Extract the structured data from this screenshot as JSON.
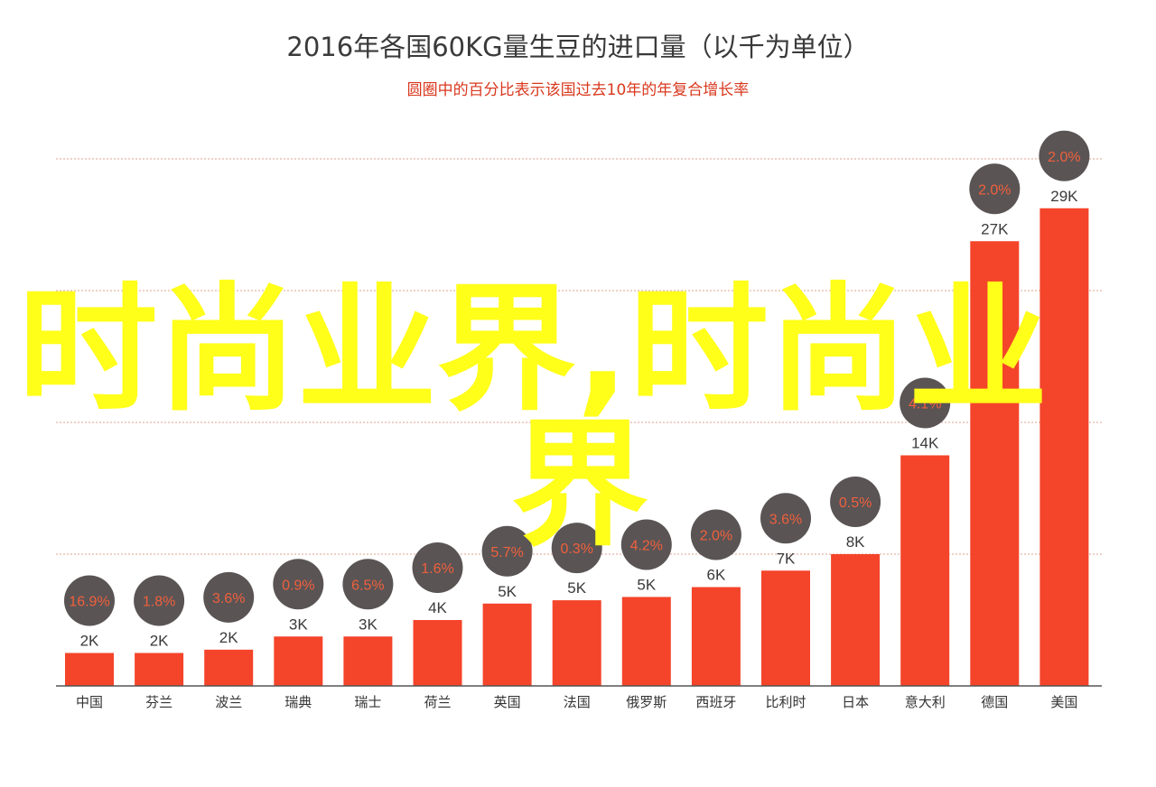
{
  "chart_data": {
    "type": "bar",
    "title": "2016年各国60KG量生豆的进口量（以千为单位）",
    "subtitle": "圆圈中的百分比表示该国过去10年的年复合增长率",
    "categories": [
      "中国",
      "芬兰",
      "波兰",
      "瑞典",
      "瑞士",
      "荷兰",
      "英国",
      "法国",
      "俄罗斯",
      "西班牙",
      "比利时",
      "日本",
      "意大利",
      "德国",
      "美国"
    ],
    "values": [
      2,
      2,
      2.2,
      3,
      3,
      4,
      5,
      5.2,
      5.4,
      6,
      7,
      8,
      14,
      27,
      29
    ],
    "value_labels": [
      "2K",
      "2K",
      "2K",
      "3K",
      "3K",
      "4K",
      "5K",
      "5K",
      "5K",
      "6K",
      "7K",
      "8K",
      "14K",
      "27K",
      "29K"
    ],
    "growth_labels": [
      "16.9%",
      "1.8%",
      "3.6%",
      "0.9%",
      "6.5%",
      "1.6%",
      "5.7%",
      "0.3%",
      "4.2%",
      "2.0%",
      "3.6%",
      "0.5%",
      "4.1%",
      "2.0%",
      "2.0%"
    ],
    "ylim": [
      0,
      32
    ],
    "grid": true,
    "colors": {
      "bar": "#f4442a",
      "circle": "#5a5455",
      "circle_text": "#f0603c",
      "grid": "#e2a08f"
    }
  },
  "watermark": {
    "line1": "时尚业界,时尚业",
    "line2": "界"
  }
}
